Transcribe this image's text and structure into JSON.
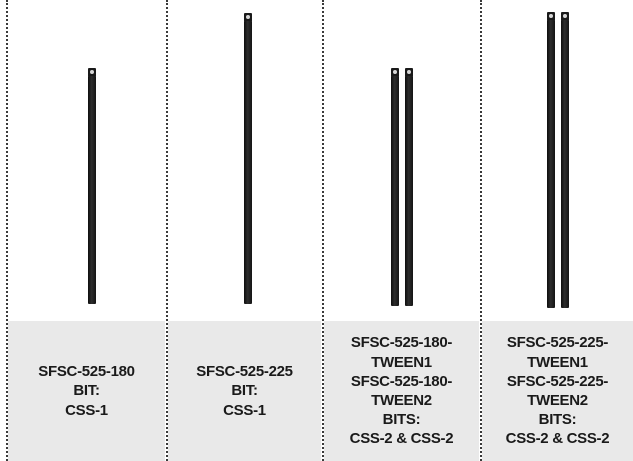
{
  "panels": [
    {
      "caption_lines": [
        "SFSC-525-180",
        "BIT:",
        "CSS-1"
      ]
    },
    {
      "caption_lines": [
        "SFSC-525-225",
        "BIT:",
        "CSS-1"
      ]
    },
    {
      "caption_lines": [
        "SFSC-525-180-",
        "TWEEN1",
        "SFSC-525-180-",
        "TWEEN2",
        "BITS:",
        "CSS-2 & CSS-2"
      ]
    },
    {
      "caption_lines": [
        "SFSC-525-225-",
        "TWEEN1",
        "SFSC-525-225-",
        "TWEEN2",
        "BITS:",
        "CSS-2 & CSS-2"
      ]
    }
  ],
  "colors": {
    "caption_background": "#e9e9e9",
    "rod": "#1a1a1a",
    "divider": "#3a3a3a"
  }
}
